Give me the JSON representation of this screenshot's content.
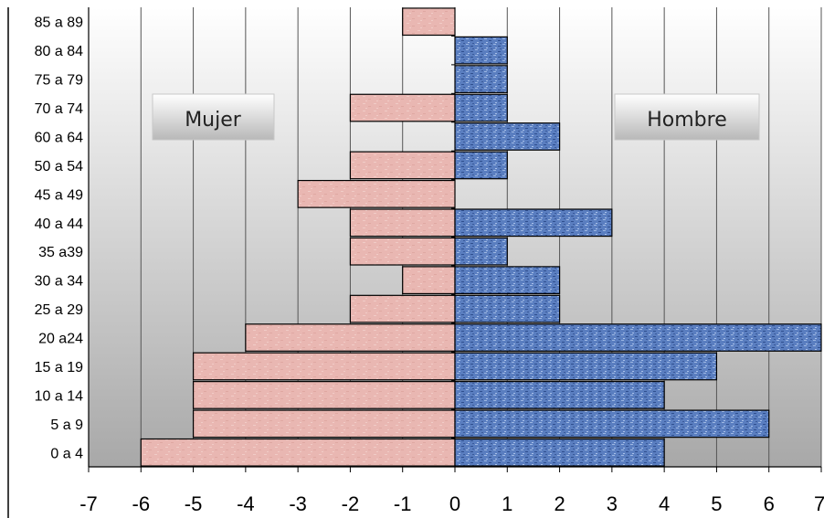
{
  "chart_data": {
    "type": "bar",
    "orientation": "horizontal",
    "subtype": "population-pyramid",
    "categories": [
      "0 a 4",
      "5 a 9",
      "10 a 14",
      "15 a 19",
      "20 a24",
      "25 a 29",
      "30 a 34",
      "35 a39",
      "40 a 44",
      "45 a 49",
      "50 a 54",
      "60 a 64",
      "70 a 74",
      "75 a 79",
      "80 a 84",
      "85 a 89"
    ],
    "series": [
      {
        "name": "Mujer",
        "values": [
          -6,
          -5,
          -5,
          -5,
          -4,
          -2,
          -1,
          -2,
          -2,
          -3,
          -2,
          0,
          -2,
          0,
          0,
          -1
        ],
        "color": "#e8b4b0"
      },
      {
        "name": "Hombre",
        "values": [
          4,
          6,
          4,
          5,
          7,
          2,
          2,
          1,
          3,
          0,
          1,
          2,
          1,
          1,
          1,
          0
        ],
        "color": "#5b7fbf"
      }
    ],
    "xlim": [
      -7,
      7
    ],
    "xticks": [
      -7,
      -6,
      -5,
      -4,
      -3,
      -2,
      -1,
      0,
      1,
      2,
      3,
      4,
      5,
      6,
      7
    ],
    "grid": true,
    "legend_labels": {
      "left": "Mujer",
      "right": "Hombre"
    }
  }
}
